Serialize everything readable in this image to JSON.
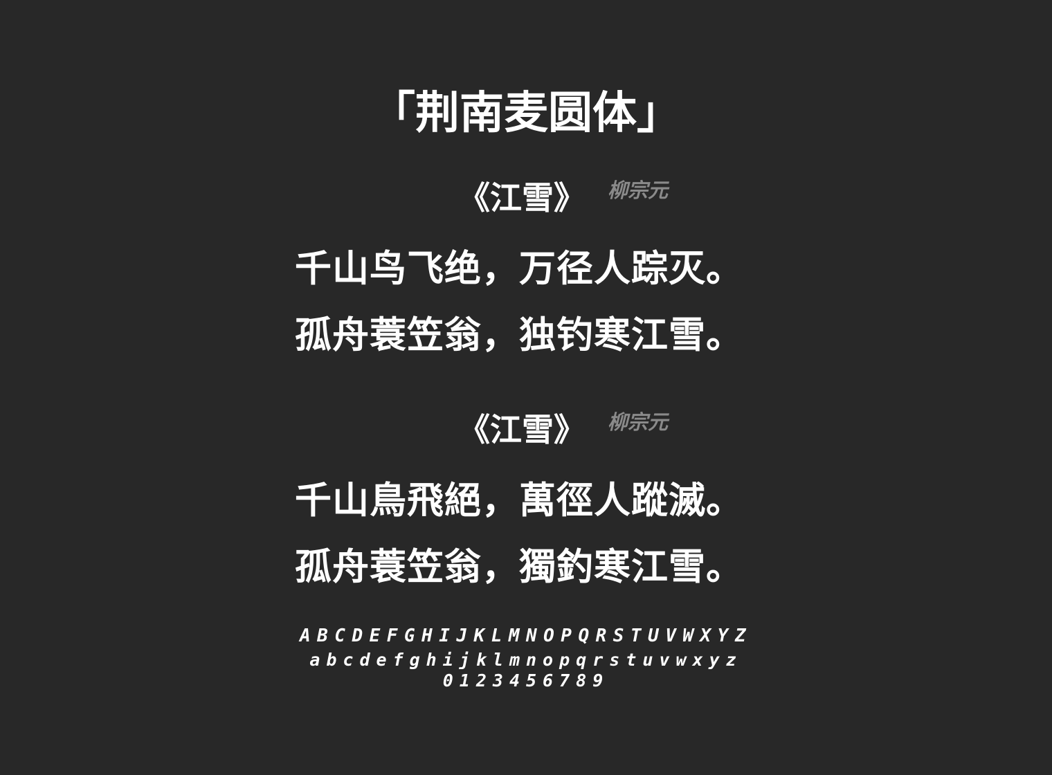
{
  "font_title": "「荆南麦圆体」",
  "poems": [
    {
      "title": "《江雪》",
      "author": "柳宗元",
      "lines": [
        "千山鸟飞绝，万径人踪灭。",
        "孤舟蓑笠翁，独钓寒江雪。"
      ]
    },
    {
      "title": "《江雪》",
      "author": "柳宗元",
      "lines": [
        "千山鳥飛絕，萬徑人蹤滅。",
        "孤舟蓑笠翁，獨釣寒江雪。"
      ]
    }
  ],
  "alphabet": {
    "upper": "ABCDEFGHIJKLMNOPQRSTUVWXYZ",
    "lower": "abcdefghijklmnopqrstuvwxyz",
    "digits": "0123456789"
  },
  "colors": {
    "background": "#282828",
    "text": "#ffffff",
    "author": "#8a8a8a"
  }
}
